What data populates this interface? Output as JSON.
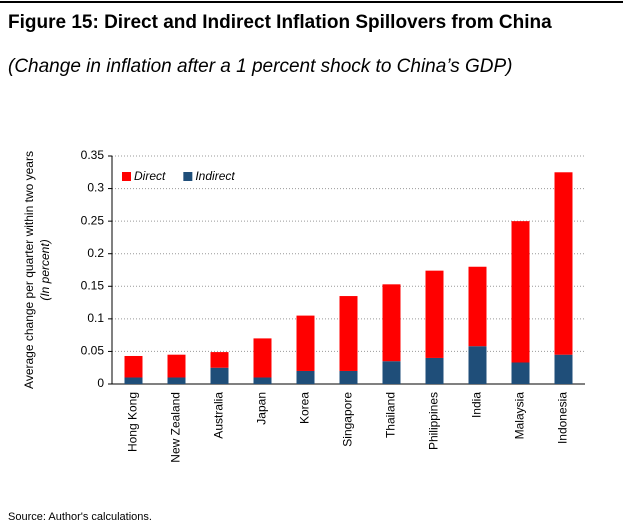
{
  "chart_data": {
    "type": "stacked_bar",
    "title": "Figure 15: Direct and Indirect Inflation Spillovers from China",
    "subtitle": "(Change in inflation after a 1 percent shock to China’s GDP)",
    "y_label": "Average  change per quarter within two years",
    "y_label_note": "(In percent)",
    "source": "Source: Author's calculations.",
    "categories": [
      "Hong Kong",
      "New Zealand",
      "Australia",
      "Japan",
      "Korea",
      "Singapore",
      "Thailand",
      "Philippines",
      "India",
      "Malaysia",
      "Indonesia"
    ],
    "series": [
      {
        "name": "Direct",
        "color": "#ff0000",
        "values": [
          0.033,
          0.035,
          0.024,
          0.06,
          0.085,
          0.115,
          0.118,
          0.134,
          0.122,
          0.217,
          0.28
        ]
      },
      {
        "name": "Indirect",
        "color": "#1f4e79",
        "values": [
          0.01,
          0.01,
          0.025,
          0.01,
          0.02,
          0.02,
          0.035,
          0.04,
          0.058,
          0.033,
          0.045
        ]
      }
    ],
    "stack_order": [
      "Indirect",
      "Direct"
    ],
    "ylim": [
      0,
      0.35
    ],
    "yticks": [
      0,
      0.05,
      0.1,
      0.15,
      0.2,
      0.25,
      0.3,
      0.35
    ],
    "grid": true,
    "legend": "top-left"
  }
}
